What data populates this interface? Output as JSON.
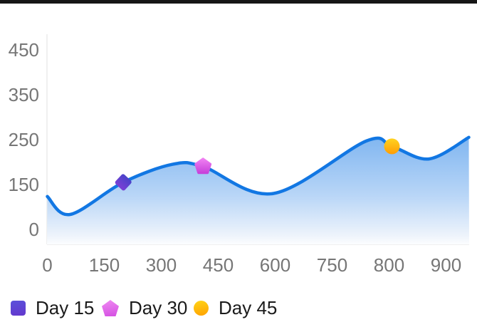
{
  "window": {
    "background": "#ffffff",
    "top_bar_color": "#161616"
  },
  "chart_data": {
    "type": "area",
    "title": "",
    "xlabel": "",
    "ylabel": "",
    "x_ticks": [
      0,
      150,
      300,
      450,
      600,
      750,
      800,
      900
    ],
    "y_ticks": [
      450,
      350,
      250,
      150,
      0
    ],
    "x_range": [
      0,
      940
    ],
    "grid": false,
    "legend_position": "bottom-left",
    "line": {
      "name": "trend-line",
      "color": "#1277e3",
      "width": 4.5,
      "points": [
        [
          0,
          110
        ],
        [
          60,
          50
        ],
        [
          200,
          155
        ],
        [
          330,
          195
        ],
        [
          410,
          190
        ],
        [
          595,
          120
        ],
        [
          780,
          247
        ],
        [
          805,
          235
        ],
        [
          870,
          207
        ],
        [
          940,
          255
        ]
      ]
    },
    "area_fill": {
      "top_color": "#7db4f0",
      "mid_color": "#b9d6f7",
      "low_color": "#edf3fb",
      "bottom_color": "#ffffff"
    },
    "markers": [
      {
        "label": "Day 15",
        "shape": "diamond",
        "x": 200,
        "y": 155,
        "color_top": "#4a43c9",
        "color_bottom": "#7b40d6"
      },
      {
        "label": "Day 30",
        "shape": "pentagon",
        "x": 410,
        "y": 190,
        "color_top": "#f07ff2",
        "color_bottom": "#c742da"
      },
      {
        "label": "Day 45",
        "shape": "circle",
        "x": 805,
        "y": 235,
        "color_top": "#ffd321",
        "color_bottom": "#ff9d05"
      }
    ],
    "axis": {
      "tick_color": "#767676",
      "line_color": "#ececec"
    }
  },
  "legend": {
    "text_color": "#1b1b1b",
    "items": [
      {
        "label": "Day 15",
        "shape": "square",
        "color_top": "#5a50da",
        "color_bottom": "#6338cd"
      },
      {
        "label": "Day 30",
        "shape": "pentagon",
        "color_top": "#ef8af2",
        "color_bottom": "#d44fe2"
      },
      {
        "label": "Day 45",
        "shape": "circle",
        "color_top": "#ffd417",
        "color_bottom": "#ffa201"
      }
    ]
  }
}
